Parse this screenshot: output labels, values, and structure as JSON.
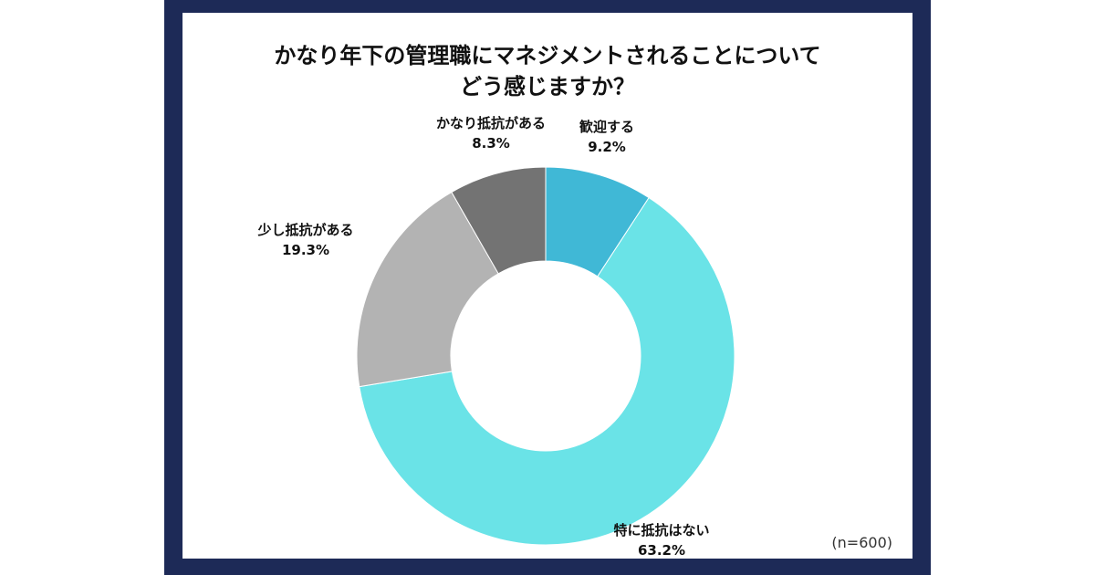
{
  "chart_data": {
    "type": "pie",
    "donut": true,
    "title_lines": [
      "かなり年下の管理職にマネジメントされることについて",
      "どう感じますか？"
    ],
    "slices": [
      {
        "label": "歓迎する",
        "value": 9.2,
        "value_label": "9.2%",
        "color": "#40b8d6"
      },
      {
        "label": "特に抵抗はない",
        "value": 63.2,
        "value_label": "63.2%",
        "color": "#6ae3e7"
      },
      {
        "label": "少し抵抗がある",
        "value": 19.3,
        "value_label": "19.3%",
        "color": "#b3b3b3"
      },
      {
        "label": "かなり抵抗がある",
        "value": 8.3,
        "value_label": "8.3%",
        "color": "#737373"
      }
    ],
    "note": "(n=600)"
  }
}
